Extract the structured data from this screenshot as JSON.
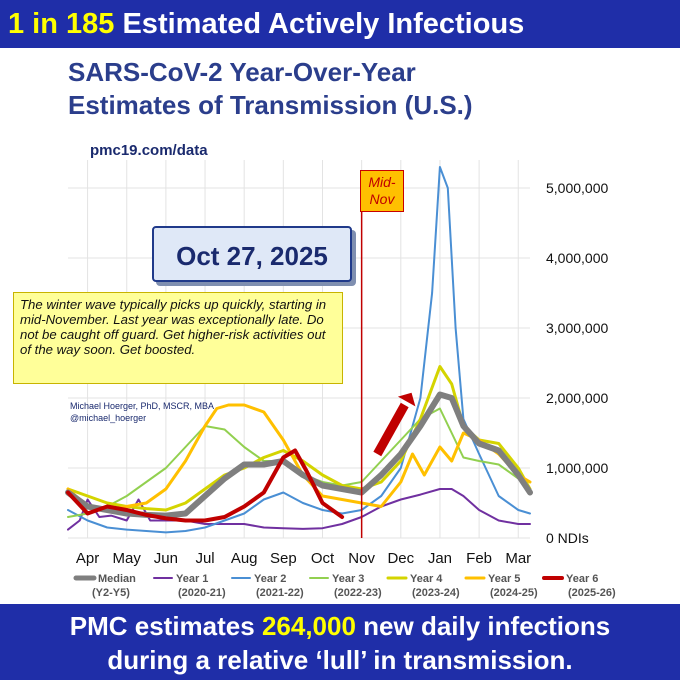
{
  "header": {
    "count": "1 in 185",
    "rest": "Estimated Actively Infectious"
  },
  "title_line1": "SARS-CoV-2 Year-Over-Year",
  "title_line2": "Estimates of Transmission (U.S.)",
  "source": "pmc19.com/data",
  "date_label": "Oct 27, 2025",
  "note": "The winter wave typically picks up quickly, starting in mid-November. Last year was exceptionally late. Do not be caught off guard. Get higher-risk activities out of the way soon. Get boosted.",
  "author_line1": "Michael Hoerger, PhD, MSCR, MBA",
  "author_line2": "@michael_hoerger",
  "marker_label_line1": "Mid-",
  "marker_label_line2": "Nov",
  "footer": {
    "pre": "PMC estimates",
    "value": "264,000",
    "post": "new daily infections",
    "line2": "during a relative ‘lull’ in transmission."
  },
  "chart_data": {
    "type": "line",
    "x_months": [
      "Apr",
      "May",
      "Jun",
      "Jul",
      "Aug",
      "Sep",
      "Oct",
      "Nov",
      "Dec",
      "Jan",
      "Feb",
      "Mar"
    ],
    "xlim": [
      -0.5,
      11.3
    ],
    "ylim": [
      0,
      5400000
    ],
    "y_ticks": [
      0,
      1000000,
      2000000,
      3000000,
      4000000,
      5000000
    ],
    "y_tick_labels": [
      "0 NDIs",
      "1,000,000",
      "2,000,000",
      "3,000,000",
      "4,000,000",
      "5,000,000"
    ],
    "marker_x": 7.0,
    "series": [
      {
        "name": "Median",
        "period": "(Y2-Y5)",
        "color": "#7f7f7f",
        "width": 6,
        "x": [
          -0.5,
          0,
          0.5,
          1,
          1.5,
          2,
          2.5,
          3,
          3.5,
          4,
          4.5,
          5,
          5.5,
          6,
          6.5,
          7,
          7.5,
          8,
          8.5,
          9,
          9.3,
          9.6,
          10,
          10.5,
          11,
          11.3
        ],
        "y": [
          650000,
          450000,
          400000,
          350000,
          330000,
          320000,
          350000,
          600000,
          850000,
          1050000,
          1050000,
          1100000,
          900000,
          750000,
          700000,
          650000,
          900000,
          1200000,
          1600000,
          2050000,
          2000000,
          1600000,
          1350000,
          1250000,
          900000,
          650000
        ]
      },
      {
        "name": "Year 1",
        "period": "(2020-21)",
        "color": "#7030a0",
        "width": 2,
        "x": [
          -0.5,
          -0.2,
          0,
          0.3,
          0.6,
          1,
          1.3,
          1.6,
          2,
          2.5,
          3,
          3.5,
          4,
          4.5,
          5,
          5.5,
          6,
          6.5,
          7,
          7.5,
          8,
          8.5,
          9,
          9.3,
          9.6,
          10,
          10.5,
          11,
          11.3
        ],
        "y": [
          120000,
          250000,
          550000,
          300000,
          320000,
          250000,
          550000,
          250000,
          250000,
          250000,
          200000,
          200000,
          200000,
          150000,
          140000,
          130000,
          140000,
          200000,
          300000,
          450000,
          550000,
          620000,
          700000,
          700000,
          600000,
          400000,
          250000,
          200000,
          200000
        ]
      },
      {
        "name": "Year 2",
        "period": "(2021-22)",
        "color": "#4a8fd4",
        "width": 2,
        "x": [
          -0.5,
          0,
          0.5,
          1,
          1.5,
          2,
          2.5,
          3,
          3.5,
          4,
          4.5,
          5,
          5.5,
          6,
          6.5,
          7,
          7.5,
          8,
          8.5,
          8.8,
          9,
          9.2,
          9.4,
          9.6,
          10,
          10.5,
          11,
          11.3
        ],
        "y": [
          400000,
          250000,
          150000,
          120000,
          100000,
          80000,
          100000,
          150000,
          250000,
          350000,
          550000,
          650000,
          500000,
          400000,
          350000,
          400000,
          600000,
          1000000,
          2000000,
          3500000,
          5300000,
          5000000,
          3000000,
          1700000,
          1200000,
          600000,
          400000,
          350000
        ]
      },
      {
        "name": "Year 3",
        "period": "(2022-23)",
        "color": "#92d050",
        "width": 2,
        "x": [
          -0.5,
          0,
          0.5,
          1,
          1.5,
          2,
          2.5,
          3,
          3.5,
          4,
          4.5,
          5,
          5.5,
          6,
          6.5,
          7,
          7.5,
          8,
          8.5,
          9,
          9.3,
          9.6,
          10,
          10.5,
          11,
          11.3
        ],
        "y": [
          300000,
          350000,
          450000,
          600000,
          800000,
          1000000,
          1300000,
          1600000,
          1550000,
          1300000,
          1100000,
          1100000,
          900000,
          800000,
          750000,
          800000,
          1100000,
          1400000,
          1700000,
          1850000,
          1500000,
          1150000,
          1100000,
          1050000,
          850000,
          700000
        ]
      },
      {
        "name": "Year 4",
        "period": "(2023-24)",
        "color": "#d4d400",
        "width": 3,
        "x": [
          -0.5,
          0,
          0.5,
          1,
          1.5,
          2,
          2.5,
          3,
          3.5,
          4,
          4.5,
          5,
          5.5,
          6,
          6.5,
          7,
          7.5,
          8,
          8.5,
          9,
          9.3,
          9.6,
          10,
          10.5,
          11,
          11.3
        ],
        "y": [
          700000,
          600000,
          500000,
          450000,
          420000,
          400000,
          500000,
          700000,
          900000,
          1000000,
          1150000,
          1250000,
          1100000,
          900000,
          750000,
          700000,
          800000,
          1100000,
          1700000,
          2450000,
          2200000,
          1600000,
          1400000,
          1350000,
          1000000,
          700000
        ]
      },
      {
        "name": "Year 5",
        "period": "(2024-25)",
        "color": "#ffc000",
        "width": 3,
        "x": [
          -0.5,
          0,
          0.5,
          1,
          1.5,
          2,
          2.5,
          3,
          3.3,
          3.6,
          4,
          4.5,
          5,
          5.5,
          6,
          6.5,
          7,
          7.5,
          8,
          8.3,
          8.6,
          9,
          9.3,
          9.6,
          10,
          10.5,
          11,
          11.3
        ],
        "y": [
          700000,
          450000,
          400000,
          450000,
          500000,
          700000,
          1100000,
          1600000,
          1850000,
          1900000,
          1900000,
          1800000,
          1400000,
          900000,
          600000,
          550000,
          500000,
          450000,
          800000,
          1200000,
          900000,
          1300000,
          1100000,
          1500000,
          1400000,
          1200000,
          900000,
          800000
        ]
      },
      {
        "name": "Year 6",
        "period": "(2025-26)",
        "color": "#c00000",
        "width": 4,
        "x": [
          -0.5,
          0,
          0.5,
          1,
          1.5,
          2,
          2.5,
          3,
          3.5,
          4,
          4.5,
          5,
          5.3,
          5.6,
          6,
          6.5
        ],
        "y": [
          650000,
          350000,
          450000,
          400000,
          330000,
          280000,
          250000,
          250000,
          300000,
          450000,
          650000,
          1150000,
          1250000,
          950000,
          500000,
          300000
        ]
      }
    ]
  }
}
